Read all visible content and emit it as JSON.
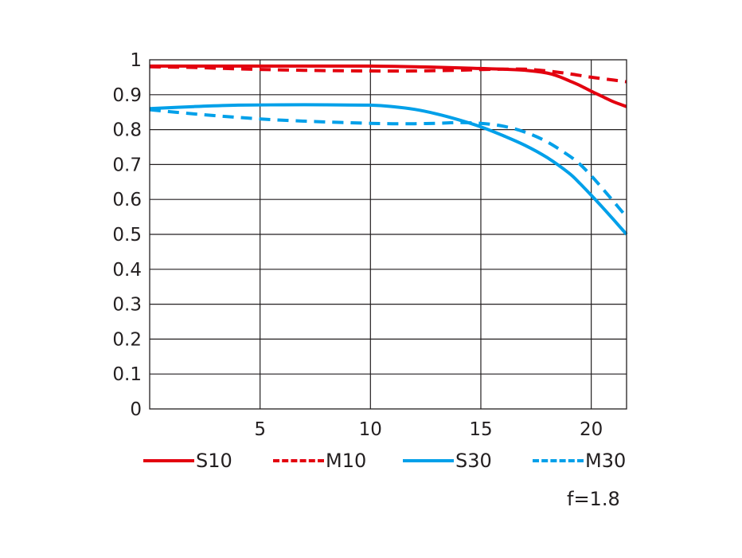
{
  "chart_data": {
    "type": "line",
    "title": "",
    "xlabel": "",
    "ylabel": "",
    "xlim": [
      0,
      21.6
    ],
    "ylim": [
      0,
      1
    ],
    "x_ticks": [
      5,
      10,
      15,
      20
    ],
    "y_ticks": [
      0,
      0.1,
      0.2,
      0.3,
      0.4,
      0.5,
      0.6,
      0.7,
      0.8,
      0.9,
      1
    ],
    "y_tick_labels": [
      "0",
      "0.1",
      "0.2",
      "0.3",
      "0.4",
      "0.5",
      "0.6",
      "0.7",
      "0.8",
      "0.9",
      "1"
    ],
    "grid": true,
    "legend_position": "bottom",
    "series": [
      {
        "name": "S10",
        "color": "#e3000f",
        "dash": "solid",
        "x": [
          0,
          2,
          4,
          6,
          8,
          10,
          12,
          14,
          15,
          16,
          17,
          18,
          18.5,
          19,
          19.5,
          20,
          20.5,
          21,
          21.6
        ],
        "y": [
          0.982,
          0.982,
          0.982,
          0.982,
          0.982,
          0.982,
          0.98,
          0.977,
          0.975,
          0.973,
          0.97,
          0.962,
          0.953,
          0.94,
          0.926,
          0.91,
          0.895,
          0.88,
          0.866
        ]
      },
      {
        "name": "M10",
        "color": "#e3000f",
        "dash": "dashed",
        "x": [
          0,
          2,
          4,
          6,
          8,
          10,
          12,
          14,
          15,
          16,
          17,
          18,
          19,
          20,
          21,
          21.6
        ],
        "y": [
          0.98,
          0.978,
          0.974,
          0.971,
          0.969,
          0.968,
          0.968,
          0.97,
          0.972,
          0.973,
          0.973,
          0.968,
          0.96,
          0.95,
          0.942,
          0.937
        ]
      },
      {
        "name": "S30",
        "color": "#00a0e9",
        "dash": "solid",
        "x": [
          0,
          2,
          4,
          6,
          8,
          10,
          11,
          12,
          13,
          14,
          15,
          16,
          17,
          18,
          19,
          19.5,
          20,
          20.5,
          21,
          21.6
        ],
        "y": [
          0.86,
          0.866,
          0.87,
          0.871,
          0.871,
          0.87,
          0.866,
          0.858,
          0.845,
          0.828,
          0.808,
          0.783,
          0.755,
          0.72,
          0.675,
          0.645,
          0.612,
          0.578,
          0.543,
          0.5
        ]
      },
      {
        "name": "M30",
        "color": "#00a0e9",
        "dash": "dashed",
        "x": [
          0,
          2,
          4,
          6,
          8,
          10,
          11,
          12,
          13,
          14,
          15,
          16,
          17,
          18,
          19,
          19.5,
          20,
          20.5,
          21,
          21.6
        ],
        "y": [
          0.857,
          0.845,
          0.835,
          0.827,
          0.822,
          0.818,
          0.817,
          0.817,
          0.818,
          0.82,
          0.818,
          0.81,
          0.793,
          0.765,
          0.725,
          0.7,
          0.668,
          0.632,
          0.595,
          0.55
        ]
      }
    ],
    "annotation": "f=1.8"
  }
}
